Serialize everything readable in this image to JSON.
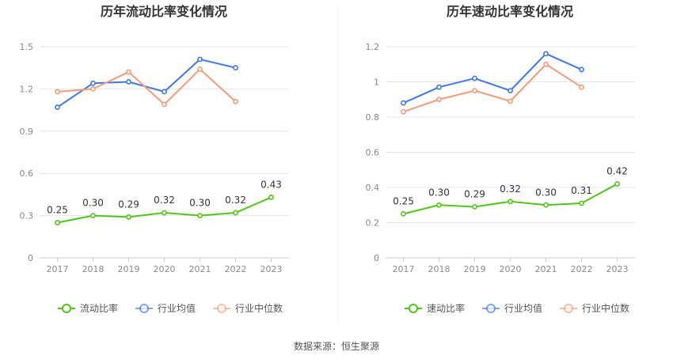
{
  "source_text": "数据来源：恒生聚源",
  "colors": {
    "green": "#52c41a",
    "blue": "#3f78e0",
    "orange": "#f39c7a",
    "grid": "#e6e6e6",
    "axis": "#cccccc",
    "divider": "#eeeeee"
  },
  "chart_data": [
    {
      "type": "line",
      "title": "历年流动比率变化情况",
      "categories": [
        "2017",
        "2018",
        "2019",
        "2020",
        "2021",
        "2022",
        "2023"
      ],
      "ylim": [
        0,
        1.5
      ],
      "yticks": [
        "0",
        "0.3",
        "0.6",
        "0.9",
        "1.2",
        "1.5"
      ],
      "ytick_values": [
        0,
        0.3,
        0.6,
        0.9,
        1.2,
        1.5
      ],
      "grid": true,
      "legend_position": "bottom",
      "series": [
        {
          "name": "流动比率",
          "color_key": "green",
          "values": [
            0.25,
            0.3,
            0.29,
            0.32,
            0.3,
            0.32,
            0.43
          ],
          "labels": [
            "0.25",
            "0.30",
            "0.29",
            "0.32",
            "0.30",
            "0.32",
            "0.43"
          ]
        },
        {
          "name": "行业均值",
          "color_key": "blue",
          "values": [
            1.07,
            1.24,
            1.25,
            1.18,
            1.41,
            1.35,
            null
          ]
        },
        {
          "name": "行业中位数",
          "color_key": "orange",
          "values": [
            1.18,
            1.2,
            1.32,
            1.09,
            1.34,
            1.11,
            null
          ]
        }
      ]
    },
    {
      "type": "line",
      "title": "历年速动比率变化情况",
      "categories": [
        "2017",
        "2018",
        "2019",
        "2020",
        "2021",
        "2022",
        "2023"
      ],
      "ylim": [
        0,
        1.2
      ],
      "yticks": [
        "0",
        "0.2",
        "0.4",
        "0.6",
        "0.8",
        "1",
        "1.2"
      ],
      "ytick_values": [
        0,
        0.2,
        0.4,
        0.6,
        0.8,
        1.0,
        1.2
      ],
      "grid": true,
      "legend_position": "bottom",
      "series": [
        {
          "name": "速动比率",
          "color_key": "green",
          "values": [
            0.25,
            0.3,
            0.29,
            0.32,
            0.3,
            0.31,
            0.42
          ],
          "labels": [
            "0.25",
            "0.30",
            "0.29",
            "0.32",
            "0.30",
            "0.31",
            "0.42"
          ]
        },
        {
          "name": "行业均值",
          "color_key": "blue",
          "values": [
            0.88,
            0.97,
            1.02,
            0.95,
            1.16,
            1.07,
            null
          ]
        },
        {
          "name": "行业中位数",
          "color_key": "orange",
          "values": [
            0.83,
            0.9,
            0.95,
            0.89,
            1.1,
            0.97,
            null
          ]
        }
      ]
    }
  ]
}
